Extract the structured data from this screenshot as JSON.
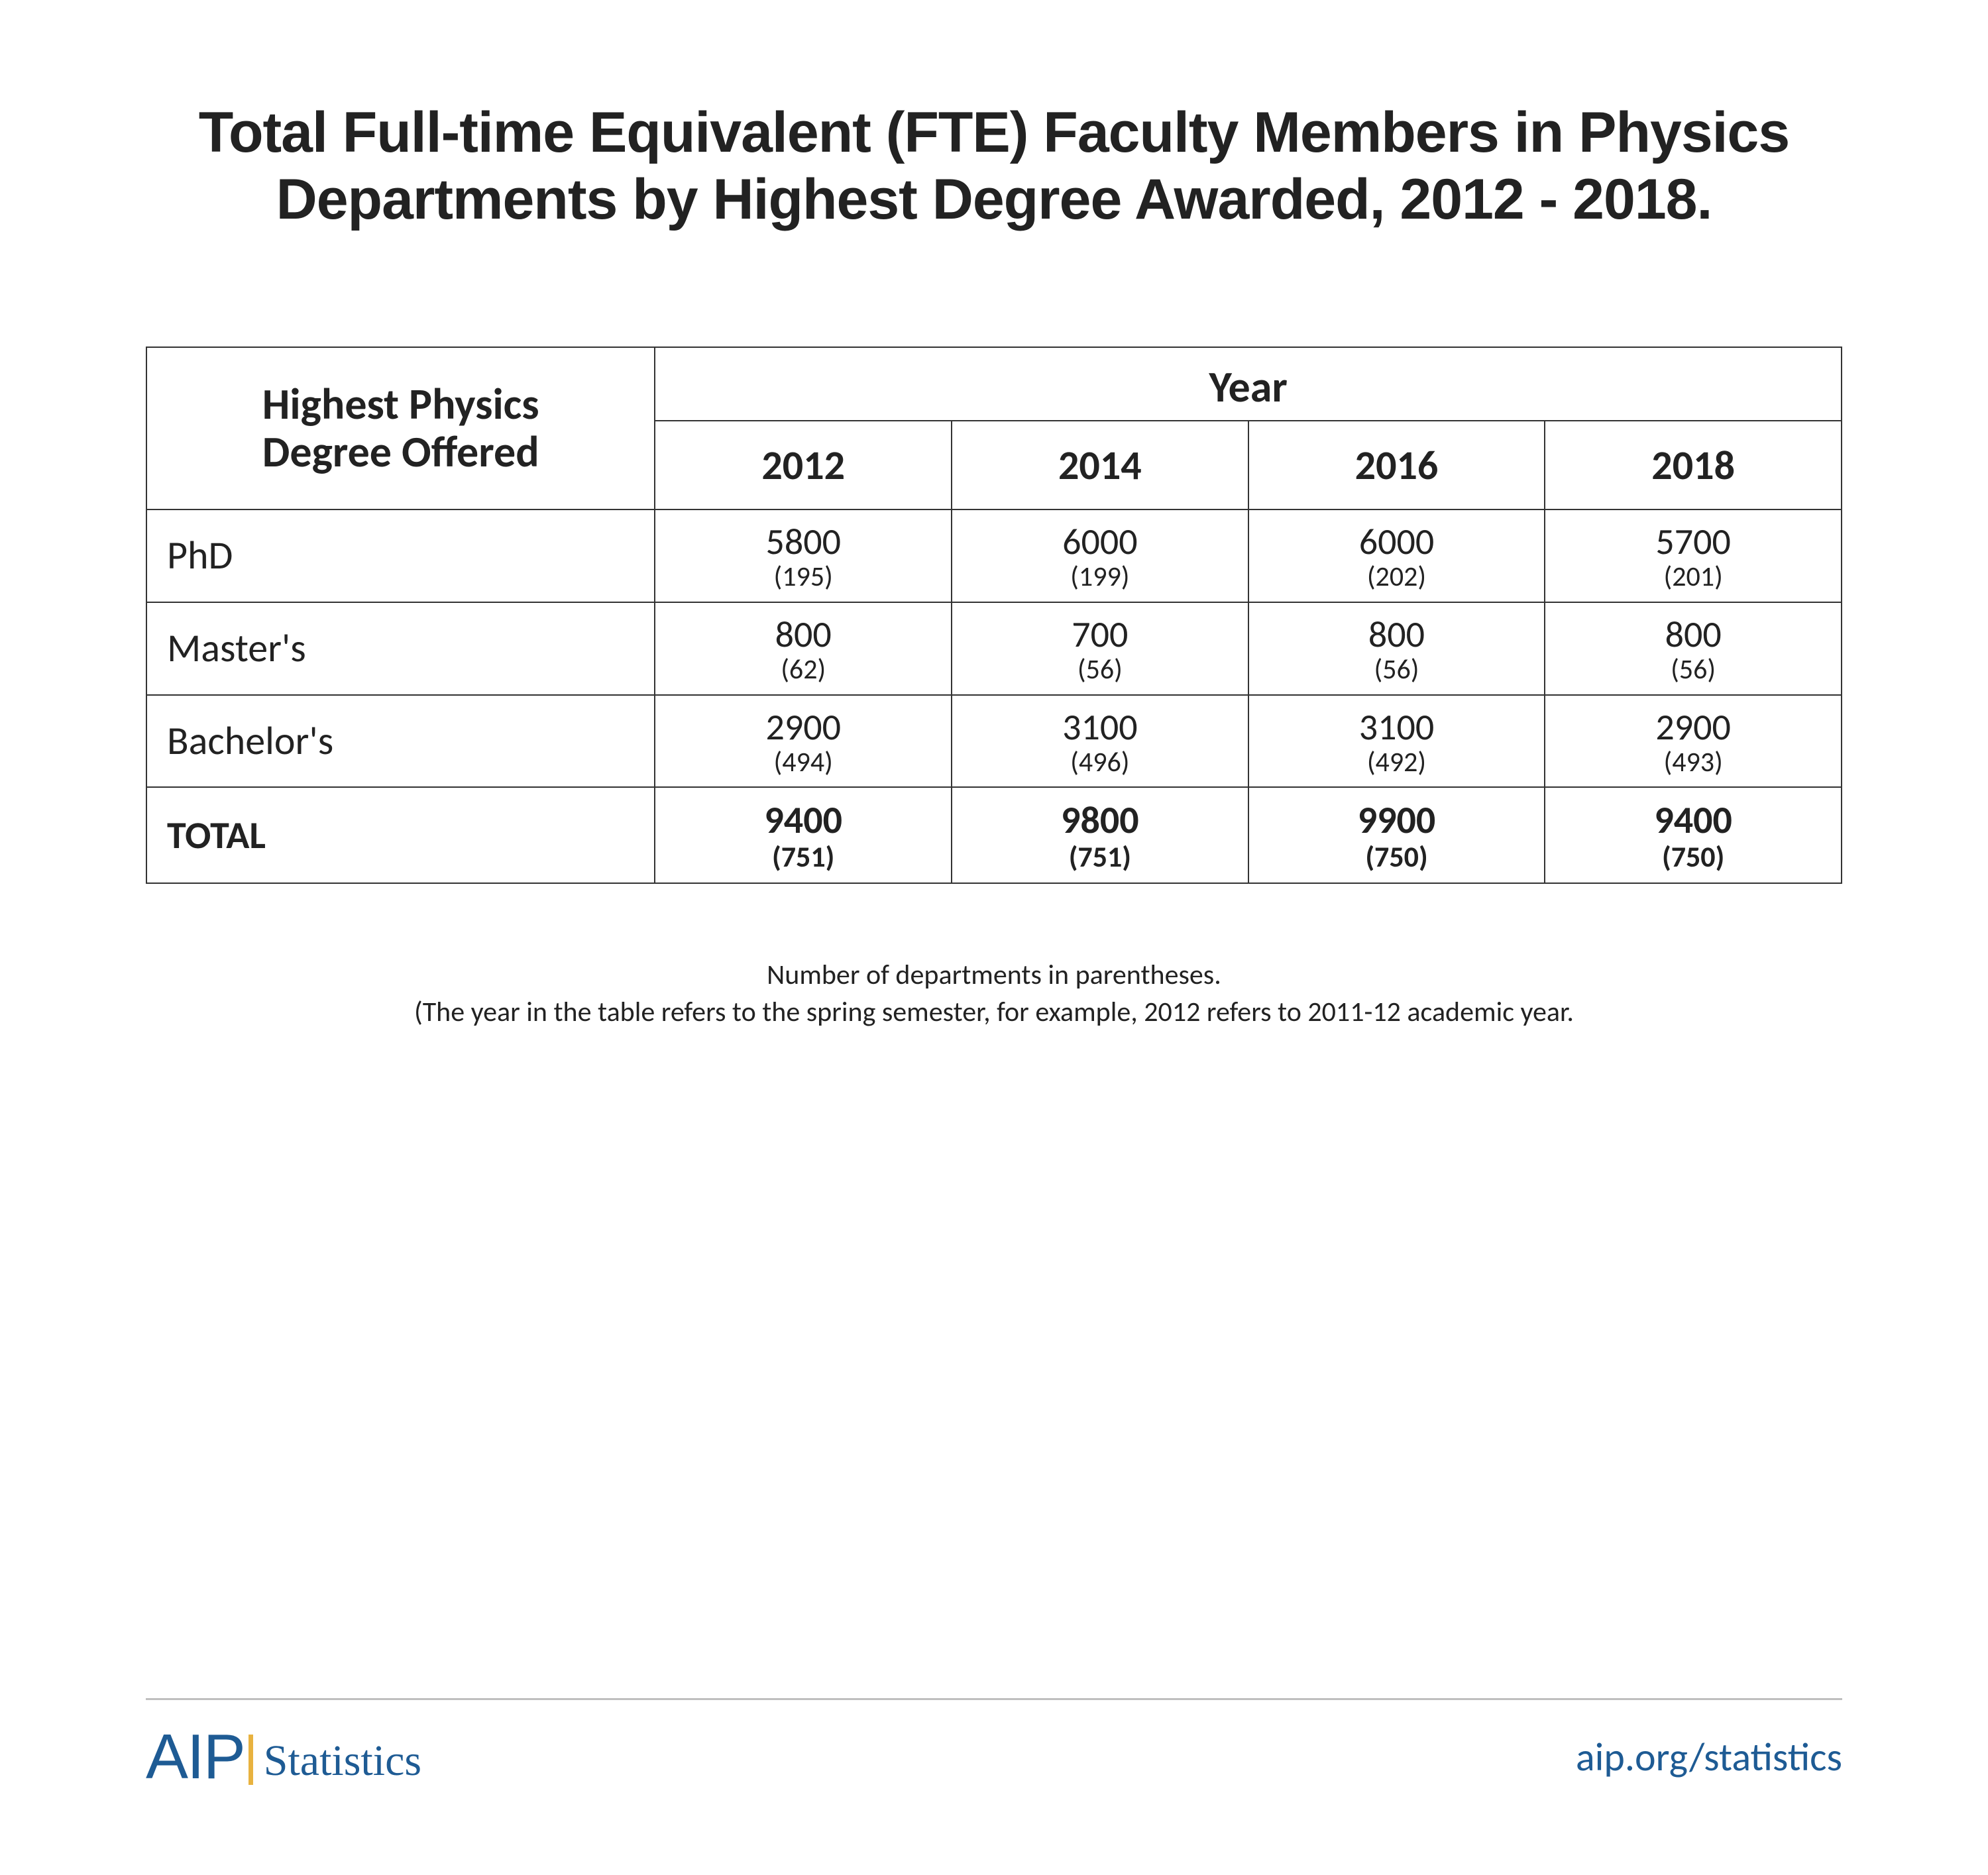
{
  "title_line1": "Total Full-time Equivalent (FTE) Faculty Members in Physics",
  "title_line2": "Departments by Highest Degree Awarded, 2012 - 2018.",
  "table": {
    "stub_head_line1": "Highest Physics",
    "stub_head_line2": "Degree Offered",
    "spanner": "Year",
    "years": [
      "2012",
      "2014",
      "2016",
      "2018"
    ],
    "rows": [
      {
        "label": "PhD",
        "cells": [
          {
            "value": "5800",
            "sub": "(195)"
          },
          {
            "value": "6000",
            "sub": "(199)"
          },
          {
            "value": "6000",
            "sub": "(202)"
          },
          {
            "value": "5700",
            "sub": "(201)"
          }
        ]
      },
      {
        "label": "Master's",
        "cells": [
          {
            "value": "800",
            "sub": "(62)"
          },
          {
            "value": "700",
            "sub": "(56)"
          },
          {
            "value": "800",
            "sub": "(56)"
          },
          {
            "value": "800",
            "sub": "(56)"
          }
        ]
      },
      {
        "label": "Bachelor's",
        "cells": [
          {
            "value": "2900",
            "sub": "(494)"
          },
          {
            "value": "3100",
            "sub": "(496)"
          },
          {
            "value": "3100",
            "sub": "(492)"
          },
          {
            "value": "2900",
            "sub": "(493)"
          }
        ]
      }
    ],
    "total": {
      "label": "TOTAL",
      "cells": [
        {
          "value": "9400",
          "sub": "(751)"
        },
        {
          "value": "9800",
          "sub": "(751)"
        },
        {
          "value": "9900",
          "sub": "(750)"
        },
        {
          "value": "9400",
          "sub": "(750)"
        }
      ]
    }
  },
  "footnote_line1": "Number of departments in parentheses.",
  "footnote_line2": "(The year in the table refers to the spring semester, for example, 2012 refers to 2011-12 academic year.",
  "footer": {
    "brand_aip": "AIP",
    "brand_stats": "Statistics",
    "site": "aip.org/statistics"
  },
  "colors": {
    "text": "#222222",
    "border": "#333333",
    "brand_blue": "#1e5b94",
    "brand_gold": "#e8b23f",
    "divider": "#bfbfbf",
    "background": "#ffffff"
  }
}
